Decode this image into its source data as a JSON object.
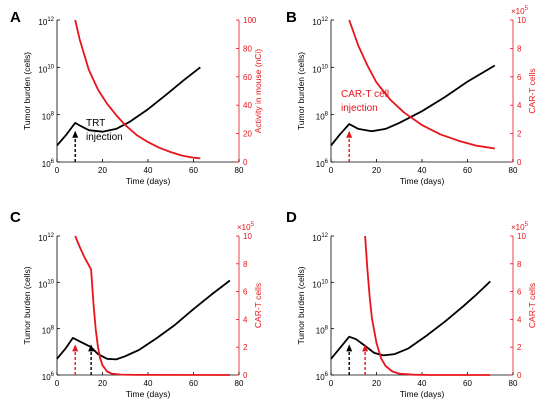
{
  "colors": {
    "tumor": "#000000",
    "secondary": "#e8141b",
    "axis": "#000000"
  },
  "chart_data": [
    {
      "panel": "A",
      "type": "line",
      "xlabel": "Time (days)",
      "ylabel": "Tumor burden (cells)",
      "ylabel_right": "Activity in mouse (nCi)",
      "xlim": [
        0,
        80
      ],
      "xticks": [
        "0",
        "20",
        "40",
        "60",
        "80"
      ],
      "ylim": [
        1000000,
        1000000000000
      ],
      "yscale": "log",
      "yticks": [
        {
          "value": 1000000,
          "base": "10",
          "exp": "6"
        },
        {
          "value": 100000000,
          "base": "10",
          "exp": "8"
        },
        {
          "value": 10000000000,
          "base": "10",
          "exp": "10"
        },
        {
          "value": 1000000000000,
          "base": "10",
          "exp": "12"
        }
      ],
      "ylim_right": [
        0,
        100
      ],
      "yticks_right": [
        "0",
        "20",
        "40",
        "60",
        "80",
        "100"
      ],
      "right_multiplier": "",
      "annotation": {
        "lines": [
          "TRT",
          "injection"
        ]
      },
      "injections": [
        {
          "day": 8,
          "color": "black"
        }
      ],
      "series": [
        {
          "axis": "left",
          "color": "black",
          "points": [
            [
              0,
              5000000
            ],
            [
              4,
              14000000
            ],
            [
              8,
              45000000
            ],
            [
              10,
              35000000
            ],
            [
              14,
              22000000
            ],
            [
              20,
              19000000
            ],
            [
              26,
              25000000
            ],
            [
              32,
              50000000
            ],
            [
              40,
              170000000
            ],
            [
              48,
              700000000
            ],
            [
              56,
              3000000000
            ],
            [
              63,
              10000000000
            ]
          ]
        },
        {
          "axis": "right",
          "color": "red",
          "points": [
            [
              8,
              100
            ],
            [
              10,
              86
            ],
            [
              14,
              65
            ],
            [
              18,
              51
            ],
            [
              22,
              41
            ],
            [
              26,
              33
            ],
            [
              30,
              26
            ],
            [
              35,
              19
            ],
            [
              40,
              14
            ],
            [
              45,
              10
            ],
            [
              50,
              7
            ],
            [
              55,
              4.5
            ],
            [
              60,
              3
            ],
            [
              63,
              2.5
            ]
          ]
        }
      ]
    },
    {
      "panel": "B",
      "type": "line",
      "xlabel": "Time (days)",
      "ylabel": "Tumor burden (cells)",
      "ylabel_right": "CAR-T cells",
      "xlim": [
        0,
        80
      ],
      "xticks": [
        "0",
        "20",
        "40",
        "60",
        "80"
      ],
      "ylim": [
        1000000,
        1000000000000
      ],
      "yscale": "log",
      "yticks": [
        {
          "value": 1000000,
          "base": "10",
          "exp": "6"
        },
        {
          "value": 100000000,
          "base": "10",
          "exp": "8"
        },
        {
          "value": 10000000000,
          "base": "10",
          "exp": "10"
        },
        {
          "value": 1000000000000,
          "base": "10",
          "exp": "12"
        }
      ],
      "ylim_right": [
        0,
        1000000
      ],
      "yticks_right": [
        "0",
        "2",
        "4",
        "6",
        "8",
        "10"
      ],
      "right_multiplier": {
        "base": "×10",
        "exp": "5"
      },
      "annotation": {
        "lines": [
          "CAR-T cell",
          "injection"
        ]
      },
      "injections": [
        {
          "day": 8,
          "color": "red"
        }
      ],
      "series": [
        {
          "axis": "left",
          "color": "black",
          "points": [
            [
              0,
              5000000
            ],
            [
              4,
              15000000
            ],
            [
              8,
              40000000
            ],
            [
              12,
              25000000
            ],
            [
              18,
              20000000
            ],
            [
              24,
              25000000
            ],
            [
              30,
              45000000
            ],
            [
              40,
              140000000
            ],
            [
              50,
              550000000
            ],
            [
              60,
              2500000000
            ],
            [
              72,
              12000000000
            ]
          ]
        },
        {
          "axis": "right",
          "color": "red",
          "points": [
            [
              8,
              1000000
            ],
            [
              12,
              820000
            ],
            [
              16,
              680000
            ],
            [
              20,
              560000
            ],
            [
              26,
              440000
            ],
            [
              32,
              350000
            ],
            [
              40,
              260000
            ],
            [
              48,
              195000
            ],
            [
              56,
              150000
            ],
            [
              64,
              115000
            ],
            [
              72,
              95000
            ]
          ]
        }
      ]
    },
    {
      "panel": "C",
      "type": "line",
      "xlabel": "Time (days)",
      "ylabel": "Tumor burden (cells)",
      "ylabel_right": "CAR-T cells",
      "xlim": [
        0,
        80
      ],
      "xticks": [
        "0",
        "20",
        "40",
        "60",
        "80"
      ],
      "ylim": [
        1000000,
        1000000000000
      ],
      "yscale": "log",
      "yticks": [
        {
          "value": 1000000,
          "base": "10",
          "exp": "6"
        },
        {
          "value": 100000000,
          "base": "10",
          "exp": "8"
        },
        {
          "value": 10000000000,
          "base": "10",
          "exp": "10"
        },
        {
          "value": 1000000000000,
          "base": "10",
          "exp": "12"
        }
      ],
      "ylim_right": [
        0,
        1000000
      ],
      "yticks_right": [
        "0",
        "2",
        "4",
        "6",
        "8",
        "10"
      ],
      "right_multiplier": {
        "base": "×10",
        "exp": "5"
      },
      "annotation": null,
      "injections": [
        {
          "day": 8,
          "color": "red"
        },
        {
          "day": 15,
          "color": "black"
        }
      ],
      "series": [
        {
          "axis": "left",
          "color": "black",
          "points": [
            [
              0,
              5000000
            ],
            [
              4,
              15000000
            ],
            [
              7,
              40000000
            ],
            [
              11,
              25000000
            ],
            [
              15,
              16000000
            ],
            [
              18,
              8000000
            ],
            [
              22,
              5000000
            ],
            [
              26,
              4700000
            ],
            [
              30,
              6500000
            ],
            [
              36,
              12000000
            ],
            [
              44,
              40000000
            ],
            [
              52,
              150000000
            ],
            [
              60,
              700000000
            ],
            [
              68,
              3000000000
            ],
            [
              76,
              12000000000
            ]
          ]
        },
        {
          "axis": "right",
          "color": "red",
          "points": [
            [
              8,
              1000000
            ],
            [
              10,
              920000
            ],
            [
              12,
              850000
            ],
            [
              14,
              790000
            ],
            [
              15,
              760000
            ],
            [
              16,
              520000
            ],
            [
              17,
              330000
            ],
            [
              18,
              200000
            ],
            [
              19,
              120000
            ],
            [
              20,
              70000
            ],
            [
              22,
              25000
            ],
            [
              24,
              10000
            ],
            [
              28,
              3000
            ],
            [
              35,
              800
            ],
            [
              76,
              0
            ]
          ]
        }
      ]
    },
    {
      "panel": "D",
      "type": "line",
      "xlabel": "Time (days)",
      "ylabel": "Tumor burden (cells)",
      "ylabel_right": "CAR-T cells",
      "xlim": [
        0,
        80
      ],
      "xticks": [
        "0",
        "20",
        "40",
        "60",
        "80"
      ],
      "ylim": [
        1000000,
        1000000000000
      ],
      "yscale": "log",
      "yticks": [
        {
          "value": 1000000,
          "base": "10",
          "exp": "6"
        },
        {
          "value": 100000000,
          "base": "10",
          "exp": "8"
        },
        {
          "value": 10000000000,
          "base": "10",
          "exp": "10"
        },
        {
          "value": 1000000000000,
          "base": "10",
          "exp": "12"
        }
      ],
      "ylim_right": [
        0,
        1000000
      ],
      "yticks_right": [
        "0",
        "2",
        "4",
        "6",
        "8",
        "10"
      ],
      "right_multiplier": {
        "base": "×10",
        "exp": "5"
      },
      "annotation": null,
      "injections": [
        {
          "day": 8,
          "color": "black"
        },
        {
          "day": 15,
          "color": "red"
        }
      ],
      "series": [
        {
          "axis": "left",
          "color": "black",
          "points": [
            [
              0,
              5000000
            ],
            [
              4,
              15000000
            ],
            [
              8,
              45000000
            ],
            [
              11,
              35000000
            ],
            [
              15,
              18000000
            ],
            [
              19,
              9000000
            ],
            [
              23,
              7000000
            ],
            [
              28,
              8000000
            ],
            [
              34,
              14000000
            ],
            [
              42,
              50000000
            ],
            [
              50,
              200000000
            ],
            [
              58,
              900000000
            ],
            [
              64,
              3000000000
            ],
            [
              70,
              11000000000
            ]
          ]
        },
        {
          "axis": "right",
          "color": "red",
          "points": [
            [
              15,
              1000000
            ],
            [
              16,
              760000
            ],
            [
              17,
              560000
            ],
            [
              18,
              410000
            ],
            [
              20,
              230000
            ],
            [
              22,
              120000
            ],
            [
              24,
              65000
            ],
            [
              27,
              25000
            ],
            [
              30,
              10000
            ],
            [
              36,
              2000
            ],
            [
              44,
              300
            ],
            [
              70,
              0
            ]
          ]
        }
      ]
    }
  ]
}
